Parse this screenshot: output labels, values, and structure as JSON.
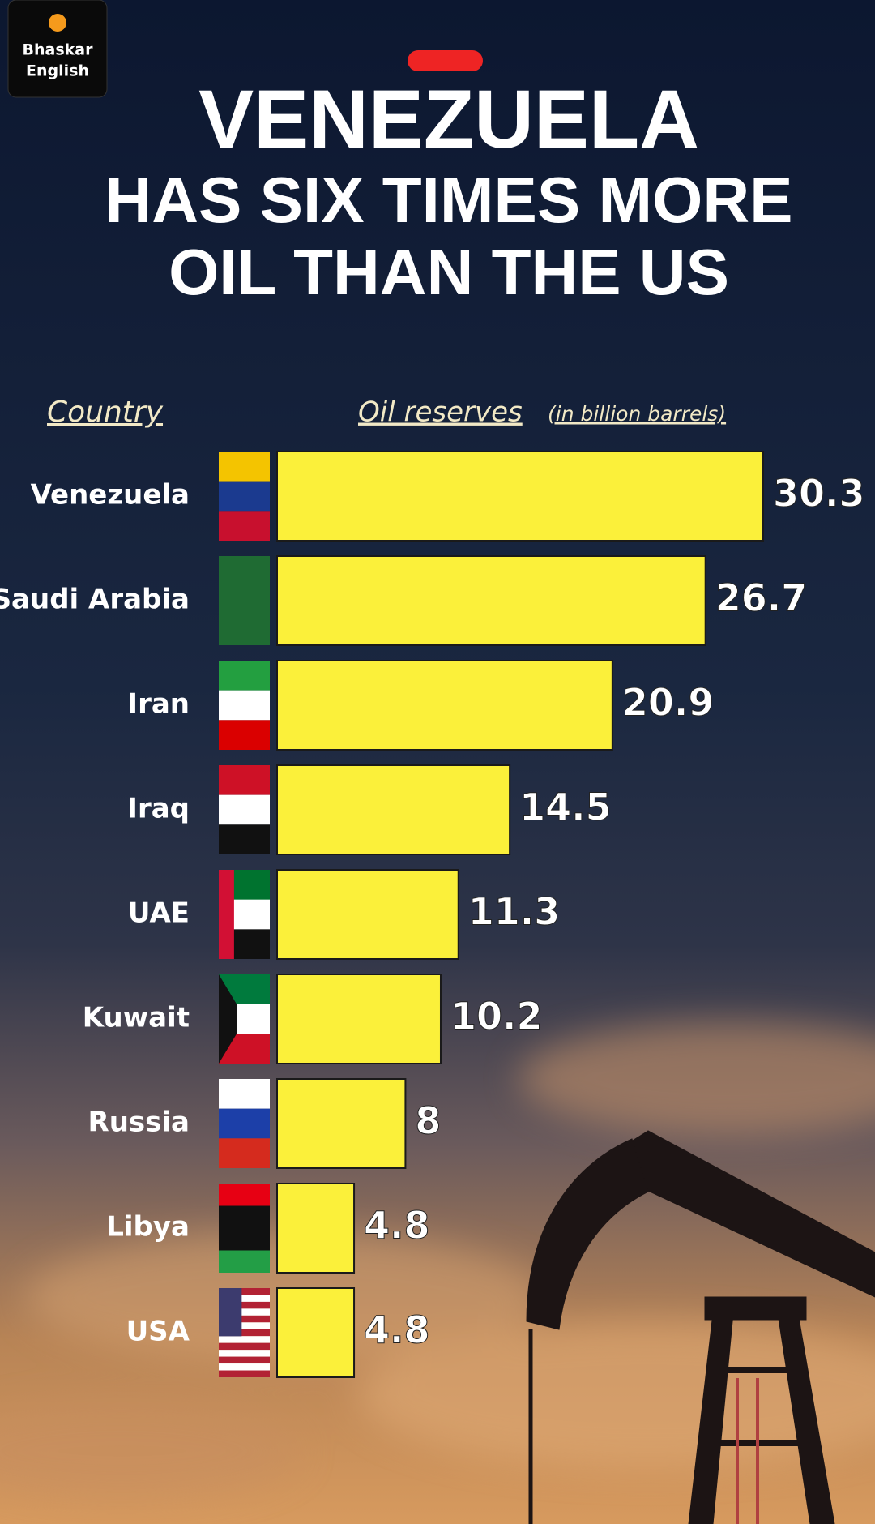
{
  "brand": {
    "lines": [
      "Bhaskar",
      "English"
    ]
  },
  "chart_data": {
    "type": "bar",
    "orientation": "horizontal",
    "title": "VENEZUELA",
    "subtitle": [
      "HAS SIX TIMES MORE",
      "OIL THAN THE US"
    ],
    "category_header": "Country",
    "value_header": "Oil reserves",
    "value_unit": "(in billion barrels)",
    "categories": [
      "Venezuela",
      "Saudi Arabia",
      "Iran",
      "Iraq",
      "UAE",
      "Kuwait",
      "Russia",
      "Libya",
      "USA"
    ],
    "values": [
      30.3,
      26.7,
      20.9,
      14.5,
      11.3,
      10.2,
      8,
      4.8,
      4.8
    ],
    "color": "#fbf03a"
  }
}
